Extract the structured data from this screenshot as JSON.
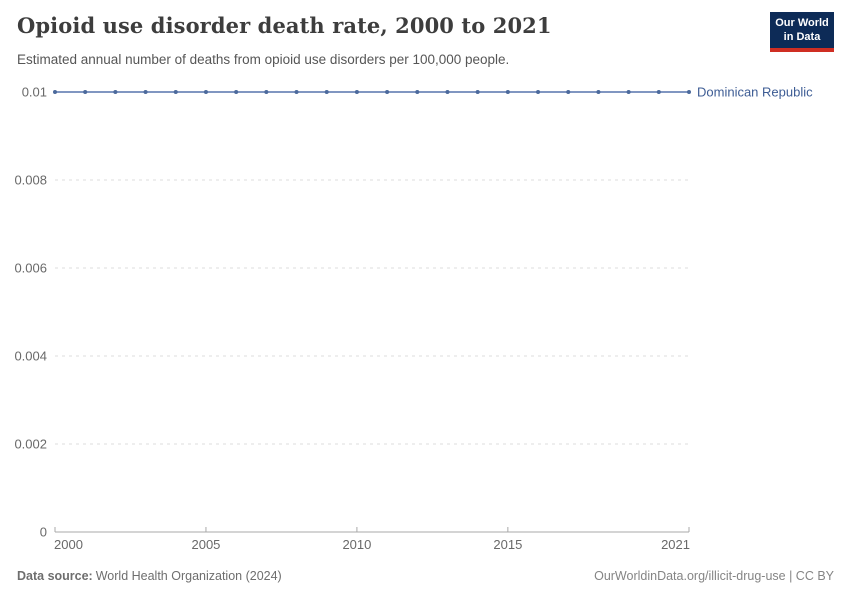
{
  "header": {
    "title": "Opioid use disorder death rate, 2000 to 2021",
    "subtitle": "Estimated annual number of deaths from opioid use disorders per 100,000 people.",
    "logo": {
      "line1": "Our World",
      "line2": "in Data"
    }
  },
  "chart_data": {
    "type": "line",
    "title": "Opioid use disorder death rate, 2000 to 2021",
    "x": [
      2000,
      2001,
      2002,
      2003,
      2004,
      2005,
      2006,
      2007,
      2008,
      2009,
      2010,
      2011,
      2012,
      2013,
      2014,
      2015,
      2016,
      2017,
      2018,
      2019,
      2020,
      2021
    ],
    "series": [
      {
        "name": "Dominican Republic",
        "values": [
          0.01,
          0.01,
          0.01,
          0.01,
          0.01,
          0.01,
          0.01,
          0.01,
          0.01,
          0.01,
          0.01,
          0.01,
          0.01,
          0.01,
          0.01,
          0.01,
          0.01,
          0.01,
          0.01,
          0.01,
          0.01,
          0.01
        ]
      }
    ],
    "xlabel": "",
    "ylabel": "",
    "ylim": [
      0,
      0.01
    ],
    "yticks": [
      0,
      0.002,
      0.004,
      0.006,
      0.008,
      0.01
    ],
    "ytick_labels": [
      "0",
      "0.002",
      "0.004",
      "0.006",
      "0.008",
      "0.01"
    ],
    "xticks": [
      2000,
      2005,
      2010,
      2015,
      2021
    ],
    "grid": "horizontal-dashed",
    "legend_position": "end-of-line-label"
  },
  "footer": {
    "source_label": "Data source:",
    "source_value": "World Health Organization (2024)",
    "credit": "OurWorldinData.org/illicit-drug-use | CC BY"
  },
  "colors": {
    "series_line": "#6e87b8",
    "series_point": "#4c6a9c",
    "entity_label": "#3d5c94",
    "grid": "#dedede",
    "axis": "#a8a8a8",
    "tick_label": "#696969",
    "title": "#3d3d3d",
    "subtitle": "#565656",
    "footer": "#6e6e6e",
    "credit": "#858585",
    "logo_bg": "#0d2b57",
    "logo_accent": "#cf2e23"
  }
}
